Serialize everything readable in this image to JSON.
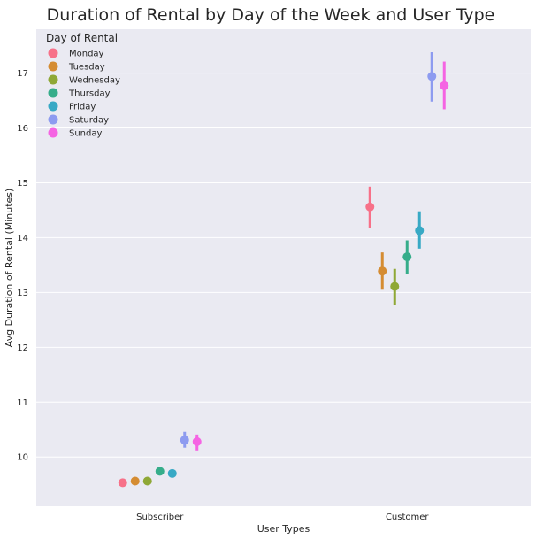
{
  "chart_data": {
    "type": "scatter",
    "subtype": "pointplot",
    "title": "Duration of Rental by Day of the Week and User Type",
    "xlabel": "User Types",
    "ylabel": "Avg Duration of Rental (Minutes)",
    "categories": [
      "Subscriber",
      "Customer"
    ],
    "ylim": [
      9.1,
      17.8
    ],
    "yticks": [
      10,
      11,
      12,
      13,
      14,
      15,
      16,
      17
    ],
    "grid": true,
    "background": "#eaeaf2",
    "legend": {
      "title": "Day of Rental",
      "placement": "top-left"
    },
    "series": [
      {
        "name": "Monday",
        "color": "#f77189",
        "values": [
          9.53,
          14.56
        ],
        "ci_low": [
          9.47,
          14.18
        ],
        "ci_high": [
          9.6,
          14.93
        ]
      },
      {
        "name": "Tuesday",
        "color": "#d58c32",
        "values": [
          9.56,
          13.39
        ],
        "ci_low": [
          9.51,
          13.05
        ],
        "ci_high": [
          9.62,
          13.73
        ]
      },
      {
        "name": "Wednesday",
        "color": "#8fa836",
        "values": [
          9.56,
          13.11
        ],
        "ci_low": [
          9.49,
          12.77
        ],
        "ci_high": [
          9.63,
          13.43
        ]
      },
      {
        "name": "Thursday",
        "color": "#36ad8a",
        "values": [
          9.74,
          13.65
        ],
        "ci_low": [
          9.68,
          13.33
        ],
        "ci_high": [
          9.8,
          13.95
        ]
      },
      {
        "name": "Friday",
        "color": "#38a9c5",
        "values": [
          9.7,
          14.13
        ],
        "ci_low": [
          9.64,
          13.8
        ],
        "ci_high": [
          9.77,
          14.48
        ]
      },
      {
        "name": "Saturday",
        "color": "#8d9bf0",
        "values": [
          10.31,
          16.94
        ],
        "ci_low": [
          10.17,
          16.48
        ],
        "ci_high": [
          10.46,
          17.38
        ]
      },
      {
        "name": "Sunday",
        "color": "#f564e3",
        "values": [
          10.28,
          16.77
        ],
        "ci_low": [
          10.12,
          16.34
        ],
        "ci_high": [
          10.41,
          17.21
        ]
      }
    ]
  }
}
